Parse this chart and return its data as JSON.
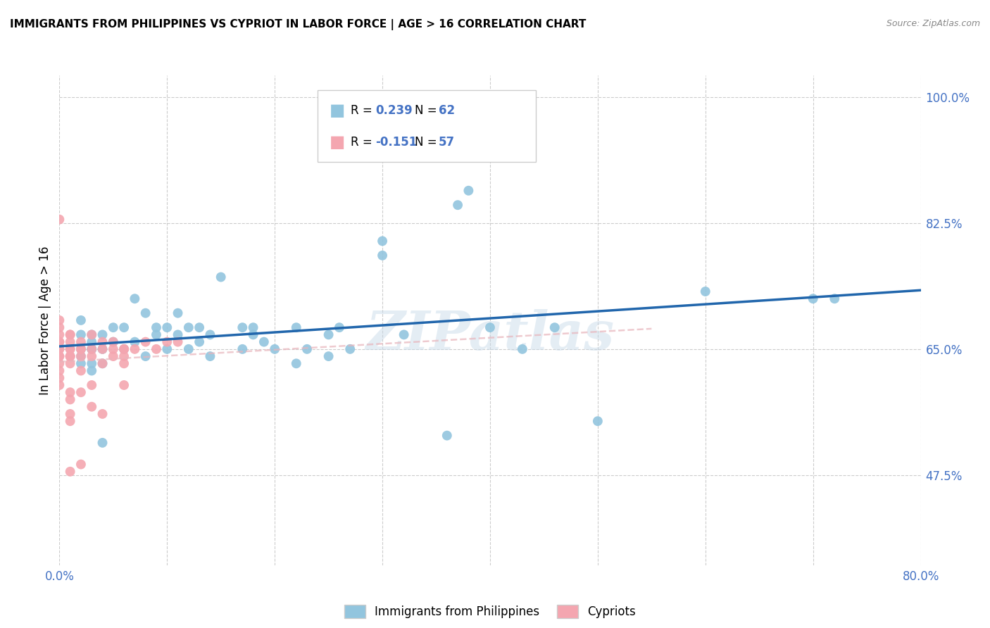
{
  "title": "IMMIGRANTS FROM PHILIPPINES VS CYPRIOT IN LABOR FORCE | AGE > 16 CORRELATION CHART",
  "source": "Source: ZipAtlas.com",
  "ylabel": "In Labor Force | Age > 16",
  "x_min": 0.0,
  "x_max": 0.8,
  "y_min": 0.35,
  "y_max": 1.03,
  "x_ticks": [
    0.0,
    0.1,
    0.2,
    0.3,
    0.4,
    0.5,
    0.6,
    0.7,
    0.8
  ],
  "x_tick_labels": [
    "0.0%",
    "",
    "",
    "",
    "",
    "",
    "",
    "",
    "80.0%"
  ],
  "y_ticks": [
    0.475,
    0.65,
    0.825,
    1.0
  ],
  "y_tick_labels": [
    "47.5%",
    "65.0%",
    "82.5%",
    "100.0%"
  ],
  "blue_R": 0.239,
  "blue_N": 62,
  "pink_R": -0.151,
  "pink_N": 57,
  "blue_color": "#92C5DE",
  "pink_color": "#F4A6B0",
  "blue_line_color": "#2166AC",
  "pink_line_color": "#F4A6B0",
  "legend_blue_label": "Immigrants from Philippines",
  "legend_pink_label": "Cypriots",
  "watermark": "ZIPatlas",
  "blue_x": [
    0.02,
    0.02,
    0.02,
    0.02,
    0.02,
    0.03,
    0.03,
    0.03,
    0.03,
    0.03,
    0.03,
    0.04,
    0.04,
    0.04,
    0.04,
    0.05,
    0.05,
    0.06,
    0.06,
    0.07,
    0.07,
    0.08,
    0.08,
    0.09,
    0.09,
    0.1,
    0.1,
    0.11,
    0.11,
    0.12,
    0.12,
    0.13,
    0.13,
    0.14,
    0.14,
    0.15,
    0.17,
    0.17,
    0.18,
    0.18,
    0.19,
    0.2,
    0.22,
    0.22,
    0.23,
    0.25,
    0.25,
    0.26,
    0.27,
    0.3,
    0.3,
    0.32,
    0.36,
    0.37,
    0.38,
    0.4,
    0.43,
    0.46,
    0.5,
    0.6,
    0.7,
    0.72
  ],
  "blue_y": [
    0.65,
    0.67,
    0.63,
    0.69,
    0.64,
    0.66,
    0.65,
    0.67,
    0.65,
    0.63,
    0.62,
    0.67,
    0.65,
    0.63,
    0.52,
    0.66,
    0.68,
    0.68,
    0.65,
    0.72,
    0.66,
    0.7,
    0.64,
    0.68,
    0.67,
    0.68,
    0.65,
    0.7,
    0.67,
    0.68,
    0.65,
    0.68,
    0.66,
    0.67,
    0.64,
    0.75,
    0.68,
    0.65,
    0.68,
    0.67,
    0.66,
    0.65,
    0.68,
    0.63,
    0.65,
    0.67,
    0.64,
    0.68,
    0.65,
    0.8,
    0.78,
    0.67,
    0.53,
    0.85,
    0.87,
    0.68,
    0.65,
    0.68,
    0.55,
    0.73,
    0.72,
    0.72
  ],
  "pink_x": [
    0.0,
    0.0,
    0.0,
    0.0,
    0.0,
    0.0,
    0.0,
    0.0,
    0.0,
    0.0,
    0.0,
    0.0,
    0.0,
    0.0,
    0.01,
    0.01,
    0.01,
    0.01,
    0.01,
    0.01,
    0.01,
    0.01,
    0.01,
    0.01,
    0.01,
    0.01,
    0.01,
    0.01,
    0.02,
    0.02,
    0.02,
    0.02,
    0.02,
    0.02,
    0.02,
    0.03,
    0.03,
    0.03,
    0.03,
    0.03,
    0.04,
    0.04,
    0.04,
    0.04,
    0.05,
    0.05,
    0.05,
    0.06,
    0.06,
    0.06,
    0.06,
    0.06,
    0.07,
    0.08,
    0.09,
    0.1,
    0.11
  ],
  "pink_y": [
    0.83,
    0.69,
    0.68,
    0.67,
    0.66,
    0.66,
    0.65,
    0.65,
    0.64,
    0.64,
    0.63,
    0.62,
    0.61,
    0.6,
    0.67,
    0.67,
    0.66,
    0.65,
    0.65,
    0.64,
    0.64,
    0.64,
    0.63,
    0.59,
    0.58,
    0.56,
    0.55,
    0.48,
    0.66,
    0.65,
    0.65,
    0.64,
    0.62,
    0.59,
    0.49,
    0.67,
    0.65,
    0.64,
    0.6,
    0.57,
    0.66,
    0.65,
    0.63,
    0.56,
    0.66,
    0.65,
    0.64,
    0.65,
    0.65,
    0.64,
    0.63,
    0.6,
    0.65,
    0.66,
    0.65,
    0.66,
    0.66
  ]
}
